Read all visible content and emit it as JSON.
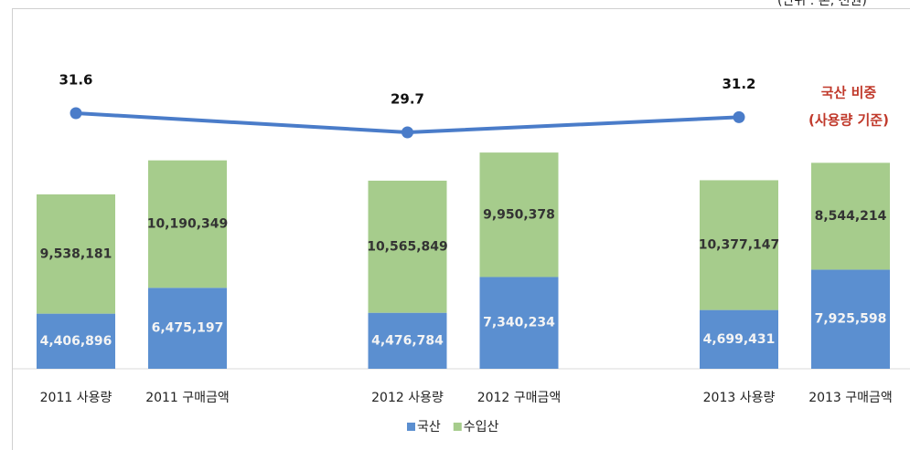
{
  "chart_data": {
    "type": "stacked_bar_line",
    "subtitle": "(단위 : 톤, 천원)",
    "categories": [
      "2011 사용량",
      "2011 구매금액",
      "2012 사용량",
      "2012 구매금액",
      "2013 사용량",
      "2013 구매금액"
    ],
    "series": [
      {
        "name": "국산",
        "color": "#5b8fd0",
        "values": [
          4406896,
          6475197,
          4476784,
          7340234,
          4699431,
          7925598
        ],
        "value_labels": [
          "4,406,896",
          "6,475,197",
          "4,476,784",
          "7,340,234",
          "4,699,431",
          "7,925,598"
        ]
      },
      {
        "name": "수입산",
        "color": "#a6cc8c",
        "values": [
          9538181,
          10190349,
          10565849,
          9950378,
          10377147,
          8544214
        ],
        "value_labels": [
          "9,538,181",
          "10,190,349",
          "10,565,849",
          "9,950,378",
          "10,377,147",
          "8,544,214"
        ]
      }
    ],
    "ylim": [
      0,
      20000000
    ],
    "line": {
      "name": "국산 비중 (사용량 기준)",
      "name_lines": [
        "국산 비중",
        "(사용량 기준)"
      ],
      "color": "#4a7cc9",
      "values": [
        31.6,
        29.7,
        31.2
      ],
      "axis": "y2"
    },
    "y2lim": [
      20,
      35
    ],
    "legend": "bottom"
  }
}
